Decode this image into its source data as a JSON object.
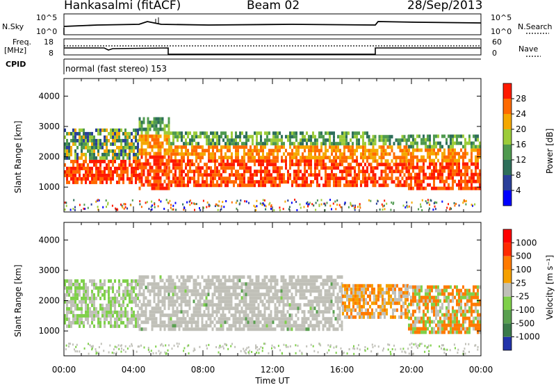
{
  "header": {
    "station": "Hankasalmi (fitACF)",
    "beam": "Beam 02",
    "date": "28/Sep/2013"
  },
  "strip": {
    "nsky_label": "N.Sky",
    "nsky_ticks": [
      "10^5",
      "10^0"
    ],
    "nsearch_label": "N.Search",
    "nsearch_ticks": [
      "10^5",
      "10^0"
    ],
    "freq_label": "Freq.",
    "freq_unit": "[MHz]",
    "freq_ticks": [
      "18",
      "8"
    ],
    "nave_label": "Nave",
    "nave_ticks": [
      "60",
      "0"
    ],
    "cpid_label": "CPID",
    "cpid_text": "normal (fast stereo) 153"
  },
  "chart_data": [
    {
      "type": "heatmap",
      "name": "power-panel",
      "xlabel": "Time UT",
      "ylabel": "Slant Range [km]",
      "x_ticks": [
        "00:00",
        "04:00",
        "08:00",
        "12:00",
        "16:00",
        "20:00",
        "00:00"
      ],
      "xlim_hours": [
        0,
        24
      ],
      "y_ticks": [
        1000,
        2000,
        3000,
        4000
      ],
      "ylim": [
        180,
        4580
      ],
      "colorbar": {
        "label": "Power [dB]",
        "range": [
          0,
          30
        ],
        "ticks": [
          "4",
          "8",
          "12",
          "16",
          "20",
          "24",
          "28"
        ],
        "colors": [
          "#0000ff",
          "#2a3f9a",
          "#2e6f5a",
          "#4f9a4f",
          "#9ccc3a",
          "#f5a800",
          "#ff6a00",
          "#ff1a00"
        ]
      },
      "regions": [
        {
          "from_h": 0.0,
          "to_h": 4.3,
          "range_km": [
            1100,
            2900
          ],
          "level": "mixed"
        },
        {
          "from_h": 4.3,
          "to_h": 6.0,
          "range_km": [
            900,
            3200
          ],
          "level": "high"
        },
        {
          "from_h": 6.0,
          "to_h": 17.5,
          "range_km": [
            1000,
            2800
          ],
          "level": "high"
        },
        {
          "from_h": 17.5,
          "to_h": 19.8,
          "range_km": [
            1000,
            2700
          ],
          "level": "high"
        },
        {
          "from_h": 19.8,
          "to_h": 24.0,
          "range_km": [
            900,
            2700
          ],
          "level": "high"
        }
      ]
    },
    {
      "type": "heatmap",
      "name": "velocity-panel",
      "xlabel": "Time UT",
      "ylabel": "Slant Range [km]",
      "x_ticks": [
        "00:00",
        "04:00",
        "08:00",
        "12:00",
        "16:00",
        "20:00",
        "00:00"
      ],
      "xlim_hours": [
        0,
        24
      ],
      "y_ticks": [
        1000,
        2000,
        3000,
        4000
      ],
      "ylim": [
        180,
        4580
      ],
      "colorbar": {
        "label": "Velocity [m s⁻¹]",
        "ticks": [
          "1000",
          "500",
          "100",
          "25",
          "-25",
          "-100",
          "-500",
          "-1000"
        ],
        "colors": [
          "#2233aa",
          "#3a7a4a",
          "#5aa050",
          "#7fd04a",
          "#c0c0b8",
          "#f5a000",
          "#ff7a00",
          "#ff2a00",
          "#ff0000"
        ]
      },
      "regions": [
        {
          "from_h": 0.0,
          "to_h": 4.3,
          "range_km": [
            1100,
            2600
          ],
          "level": "green-gray"
        },
        {
          "from_h": 4.3,
          "to_h": 16.0,
          "range_km": [
            1000,
            2800
          ],
          "level": "gray"
        },
        {
          "from_h": 16.0,
          "to_h": 19.8,
          "range_km": [
            1400,
            2500
          ],
          "level": "orange"
        },
        {
          "from_h": 19.8,
          "to_h": 24.0,
          "range_km": [
            900,
            2400
          ],
          "level": "orange-green"
        }
      ]
    }
  ]
}
